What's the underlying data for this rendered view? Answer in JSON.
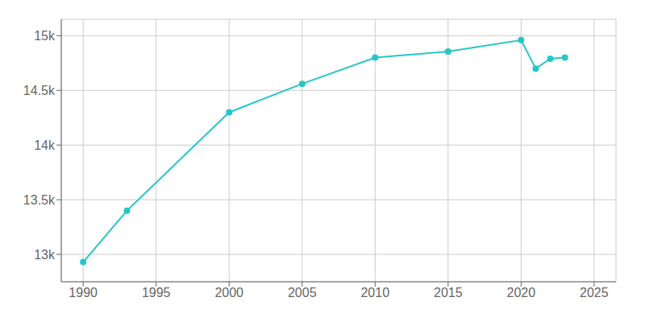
{
  "chart_data": {
    "type": "line",
    "x": [
      1990,
      1993,
      2000,
      2005,
      2010,
      2015,
      2020,
      2021,
      2022,
      2023
    ],
    "values": [
      12930,
      13400,
      14300,
      14560,
      14800,
      14855,
      14960,
      14700,
      14790,
      14800
    ],
    "color": "#26c6c6",
    "marker": "circle",
    "xlim": [
      1988.5,
      2026.5
    ],
    "xticks": [
      1990,
      1995,
      2000,
      2005,
      2010,
      2015,
      2020,
      2025
    ],
    "ylim": [
      12750,
      15150
    ],
    "yticks": [
      {
        "value": 13000,
        "label": "13k"
      },
      {
        "value": 13500,
        "label": "13.5k"
      },
      {
        "value": 14000,
        "label": "14k"
      },
      {
        "value": 14500,
        "label": "14.5k"
      },
      {
        "value": 15000,
        "label": "15k"
      }
    ],
    "grid": true
  }
}
